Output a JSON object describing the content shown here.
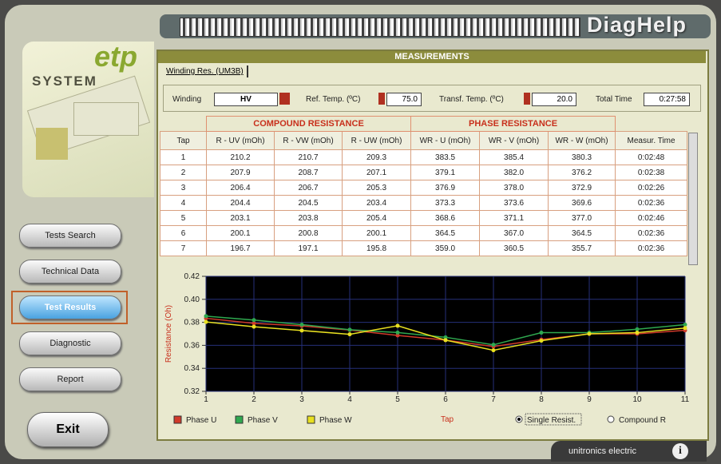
{
  "header": {
    "app_name": "DiagHelp"
  },
  "logo": {
    "brand": "etp",
    "subtitle": "SYSTEM"
  },
  "nav": {
    "buttons": [
      "Tests Search",
      "Technical Data",
      "Test Results",
      "Diagnostic",
      "Report"
    ],
    "active": 2,
    "exit": "Exit"
  },
  "measurements": {
    "title": "MEASUREMENTS",
    "tab": "Winding Res. (UM3B)",
    "controls": {
      "winding_label": "Winding",
      "winding_value": "HV",
      "ref_temp_label": "Ref. Temp. (ºC)",
      "ref_temp_value": "75.0",
      "transf_temp_label": "Transf. Temp. (ºC)",
      "transf_temp_value": "20.0",
      "total_time_label": "Total Time",
      "total_time_value": "0:27:58"
    },
    "table": {
      "groups": [
        "COMPOUND RESISTANCE",
        "PHASE RESISTANCE"
      ],
      "columns": [
        "Tap",
        "R - UV (mOh)",
        "R - VW (mOh)",
        "R - UW (mOh)",
        "WR - U (mOh)",
        "WR - V (mOh)",
        "WR - W (mOh)",
        "Measur. Time"
      ],
      "rows": [
        [
          "1",
          "210.2",
          "210.7",
          "209.3",
          "383.5",
          "385.4",
          "380.3",
          "0:02:48"
        ],
        [
          "2",
          "207.9",
          "208.7",
          "207.1",
          "379.1",
          "382.0",
          "376.2",
          "0:02:38"
        ],
        [
          "3",
          "206.4",
          "206.7",
          "205.3",
          "376.9",
          "378.0",
          "372.9",
          "0:02:26"
        ],
        [
          "4",
          "204.4",
          "204.5",
          "203.4",
          "373.3",
          "373.6",
          "369.6",
          "0:02:36"
        ],
        [
          "5",
          "203.1",
          "203.8",
          "205.4",
          "368.6",
          "371.1",
          "377.0",
          "0:02:46"
        ],
        [
          "6",
          "200.1",
          "200.8",
          "200.1",
          "364.5",
          "367.0",
          "364.5",
          "0:02:36"
        ],
        [
          "7",
          "196.7",
          "197.1",
          "195.8",
          "359.0",
          "360.5",
          "355.7",
          "0:02:36"
        ]
      ]
    },
    "radio": {
      "options": [
        "Single Resist.",
        "Compound R"
      ],
      "selected": 0
    }
  },
  "chart_data": {
    "type": "line",
    "y_label": "Resistance (Oh)",
    "x_label": "Tap",
    "x": [
      1,
      2,
      3,
      4,
      5,
      6,
      7,
      8,
      9,
      10,
      11
    ],
    "xlim": [
      1,
      11
    ],
    "xticks": [
      1,
      2,
      3,
      4,
      5,
      6,
      7,
      8,
      9,
      10,
      11
    ],
    "ylim": [
      0.32,
      0.42
    ],
    "yticks": [
      0.32,
      0.34,
      0.36,
      0.38,
      {
        "value": 0.4,
        "label": "0.40"
      },
      0.42
    ],
    "grid": true,
    "series": [
      {
        "name": "Phase U",
        "color": "#d03a2a",
        "values": [
          0.3835,
          0.3791,
          0.3769,
          0.3733,
          0.3686,
          0.3645,
          0.359,
          0.365,
          0.37,
          0.37,
          0.373
        ]
      },
      {
        "name": "Phase V",
        "color": "#2fa84f",
        "values": [
          0.3854,
          0.382,
          0.378,
          0.3736,
          0.3711,
          0.367,
          0.3605,
          0.371,
          0.371,
          0.374,
          0.378
        ]
      },
      {
        "name": "Phase W",
        "color": "#e8e020",
        "values": [
          0.3803,
          0.3762,
          0.3729,
          0.3696,
          0.377,
          0.3645,
          0.3557,
          0.364,
          0.37,
          0.371,
          0.375
        ]
      }
    ]
  },
  "footer": {
    "company": "unitronics electric",
    "info": "i"
  }
}
